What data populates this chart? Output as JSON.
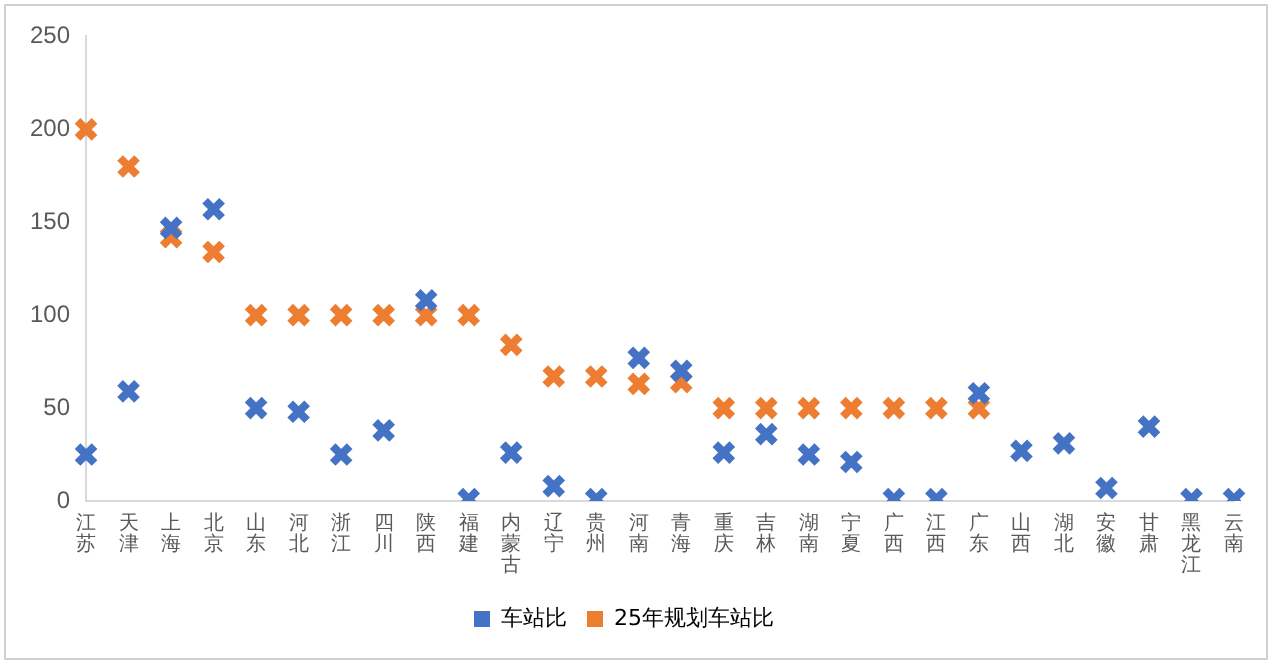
{
  "chart_data": {
    "type": "scatter",
    "categories": [
      "江苏",
      "天津",
      "上海",
      "北京",
      "山东",
      "河北",
      "浙江",
      "四川",
      "陕西",
      "福建",
      "内蒙古",
      "辽宁",
      "贵州",
      "河南",
      "青海",
      "重庆",
      "吉林",
      "湖南",
      "宁夏",
      "广西",
      "江西",
      "广东",
      "山西",
      "湖北",
      "安徽",
      "甘肃",
      "黑龙江",
      "云南"
    ],
    "series": [
      {
        "name": "车站比",
        "color": "#4472c4",
        "values": [
          25,
          59,
          147,
          157,
          50,
          48,
          25,
          38,
          108,
          1,
          26,
          8,
          1,
          77,
          70,
          26,
          36,
          25,
          21,
          1,
          1,
          58,
          27,
          31,
          7,
          40,
          1,
          1
        ]
      },
      {
        "name": "25年规划车站比",
        "color": "#ed7d31",
        "values": [
          200,
          180,
          142,
          134,
          100,
          100,
          100,
          100,
          100,
          100,
          84,
          67,
          67,
          63,
          64,
          50,
          50,
          50,
          50,
          50,
          50,
          50,
          null,
          null,
          null,
          null,
          null,
          null
        ]
      }
    ],
    "ylim": [
      0,
      250
    ],
    "yticks": [
      0,
      50,
      100,
      150,
      200,
      250
    ],
    "grid": false,
    "legend": "bottom",
    "marker": "cross"
  }
}
